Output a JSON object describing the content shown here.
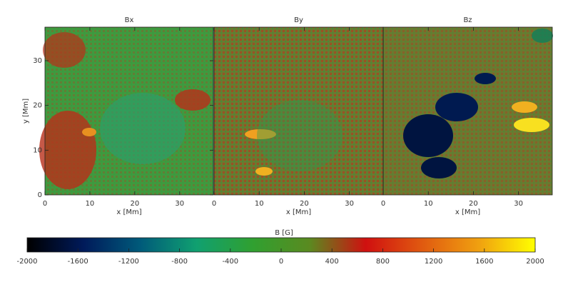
{
  "chart_data": [
    {
      "type": "heatmap",
      "title": "Bx",
      "xlabel": "x [Mm]",
      "ylabel": "y [Mm]",
      "xlim": [
        0,
        37.5
      ],
      "xticks": [
        0,
        10,
        20,
        30
      ],
      "ylim": [
        0,
        37.5
      ],
      "yticks": [
        0,
        10,
        20,
        30
      ]
    },
    {
      "type": "heatmap",
      "title": "By",
      "xlabel": "x [Mm]",
      "xlim": [
        0,
        37.5
      ],
      "xticks": [
        0,
        10,
        20,
        30
      ],
      "ylim": [
        0,
        37.5
      ]
    },
    {
      "type": "heatmap",
      "title": "Bz",
      "xlabel": "x [Mm]",
      "xlim": [
        0,
        37.5
      ],
      "xticks": [
        0,
        10,
        20,
        30
      ],
      "ylim": [
        0,
        37.5
      ]
    }
  ],
  "colorbar": {
    "label": "B [G]",
    "lim": [
      -2000,
      2000
    ],
    "ticks": [
      -2000,
      -1600,
      -1200,
      -800,
      -400,
      0,
      400,
      800,
      1200,
      1600,
      2000
    ],
    "colors": [
      "#000000",
      "#001a5a",
      "#005a7a",
      "#10a070",
      "#30a030",
      "#5a8a20",
      "#d01010",
      "#e05a10",
      "#f0a010",
      "#ffff00"
    ]
  }
}
